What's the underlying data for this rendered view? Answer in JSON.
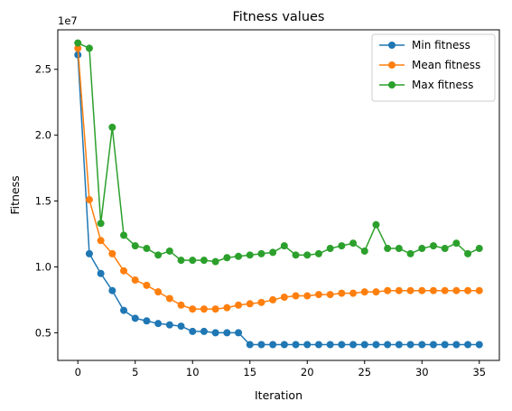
{
  "chart_data": {
    "type": "line",
    "title": "Fitness values",
    "xlabel": "Iteration",
    "ylabel": "Fitness",
    "y_offset_label": "1e7",
    "xlim": [
      -1.75,
      36.75
    ],
    "ylim": [
      2900000,
      28000000
    ],
    "xticks": [
      0,
      5,
      10,
      15,
      20,
      25,
      30,
      35
    ],
    "yticks": [
      5000000,
      10000000,
      15000000,
      20000000,
      25000000
    ],
    "ytick_labels": [
      "0.5",
      "1.0",
      "1.5",
      "2.0",
      "2.5"
    ],
    "grid": false,
    "legend_position": "top-right",
    "x": [
      0,
      1,
      2,
      3,
      4,
      5,
      6,
      7,
      8,
      9,
      10,
      11,
      12,
      13,
      14,
      15,
      16,
      17,
      18,
      19,
      20,
      21,
      22,
      23,
      24,
      25,
      26,
      27,
      28,
      29,
      30,
      31,
      32,
      33,
      34,
      35
    ],
    "series": [
      {
        "name": "Min fitness",
        "color": "#1f77b4",
        "values": [
          26100000,
          11000000,
          9500000,
          8200000,
          6700000,
          6100000,
          5900000,
          5700000,
          5600000,
          5500000,
          5100000,
          5100000,
          5000000,
          5000000,
          5000000,
          4100000,
          4100000,
          4100000,
          4100000,
          4100000,
          4100000,
          4100000,
          4100000,
          4100000,
          4100000,
          4100000,
          4100000,
          4100000,
          4100000,
          4100000,
          4100000,
          4100000,
          4100000,
          4100000,
          4100000,
          4100000
        ]
      },
      {
        "name": "Mean fitness",
        "color": "#ff7f0e",
        "values": [
          26600000,
          15100000,
          12000000,
          11000000,
          9700000,
          9000000,
          8600000,
          8100000,
          7600000,
          7100000,
          6800000,
          6800000,
          6800000,
          6900000,
          7100000,
          7200000,
          7300000,
          7500000,
          7700000,
          7800000,
          7800000,
          7900000,
          7900000,
          8000000,
          8000000,
          8100000,
          8100000,
          8200000,
          8200000,
          8200000,
          8200000,
          8200000,
          8200000,
          8200000,
          8200000,
          8200000
        ]
      },
      {
        "name": "Max fitness",
        "color": "#2ca02c",
        "values": [
          27000000,
          26600000,
          13300000,
          20600000,
          12400000,
          11600000,
          11400000,
          10900000,
          11200000,
          10500000,
          10500000,
          10500000,
          10400000,
          10700000,
          10800000,
          10900000,
          11000000,
          11100000,
          11600000,
          10900000,
          10900000,
          11000000,
          11400000,
          11600000,
          11800000,
          11200000,
          13200000,
          11400000,
          11400000,
          11000000,
          11400000,
          11600000,
          11400000,
          11800000,
          11000000,
          11400000
        ]
      }
    ]
  }
}
